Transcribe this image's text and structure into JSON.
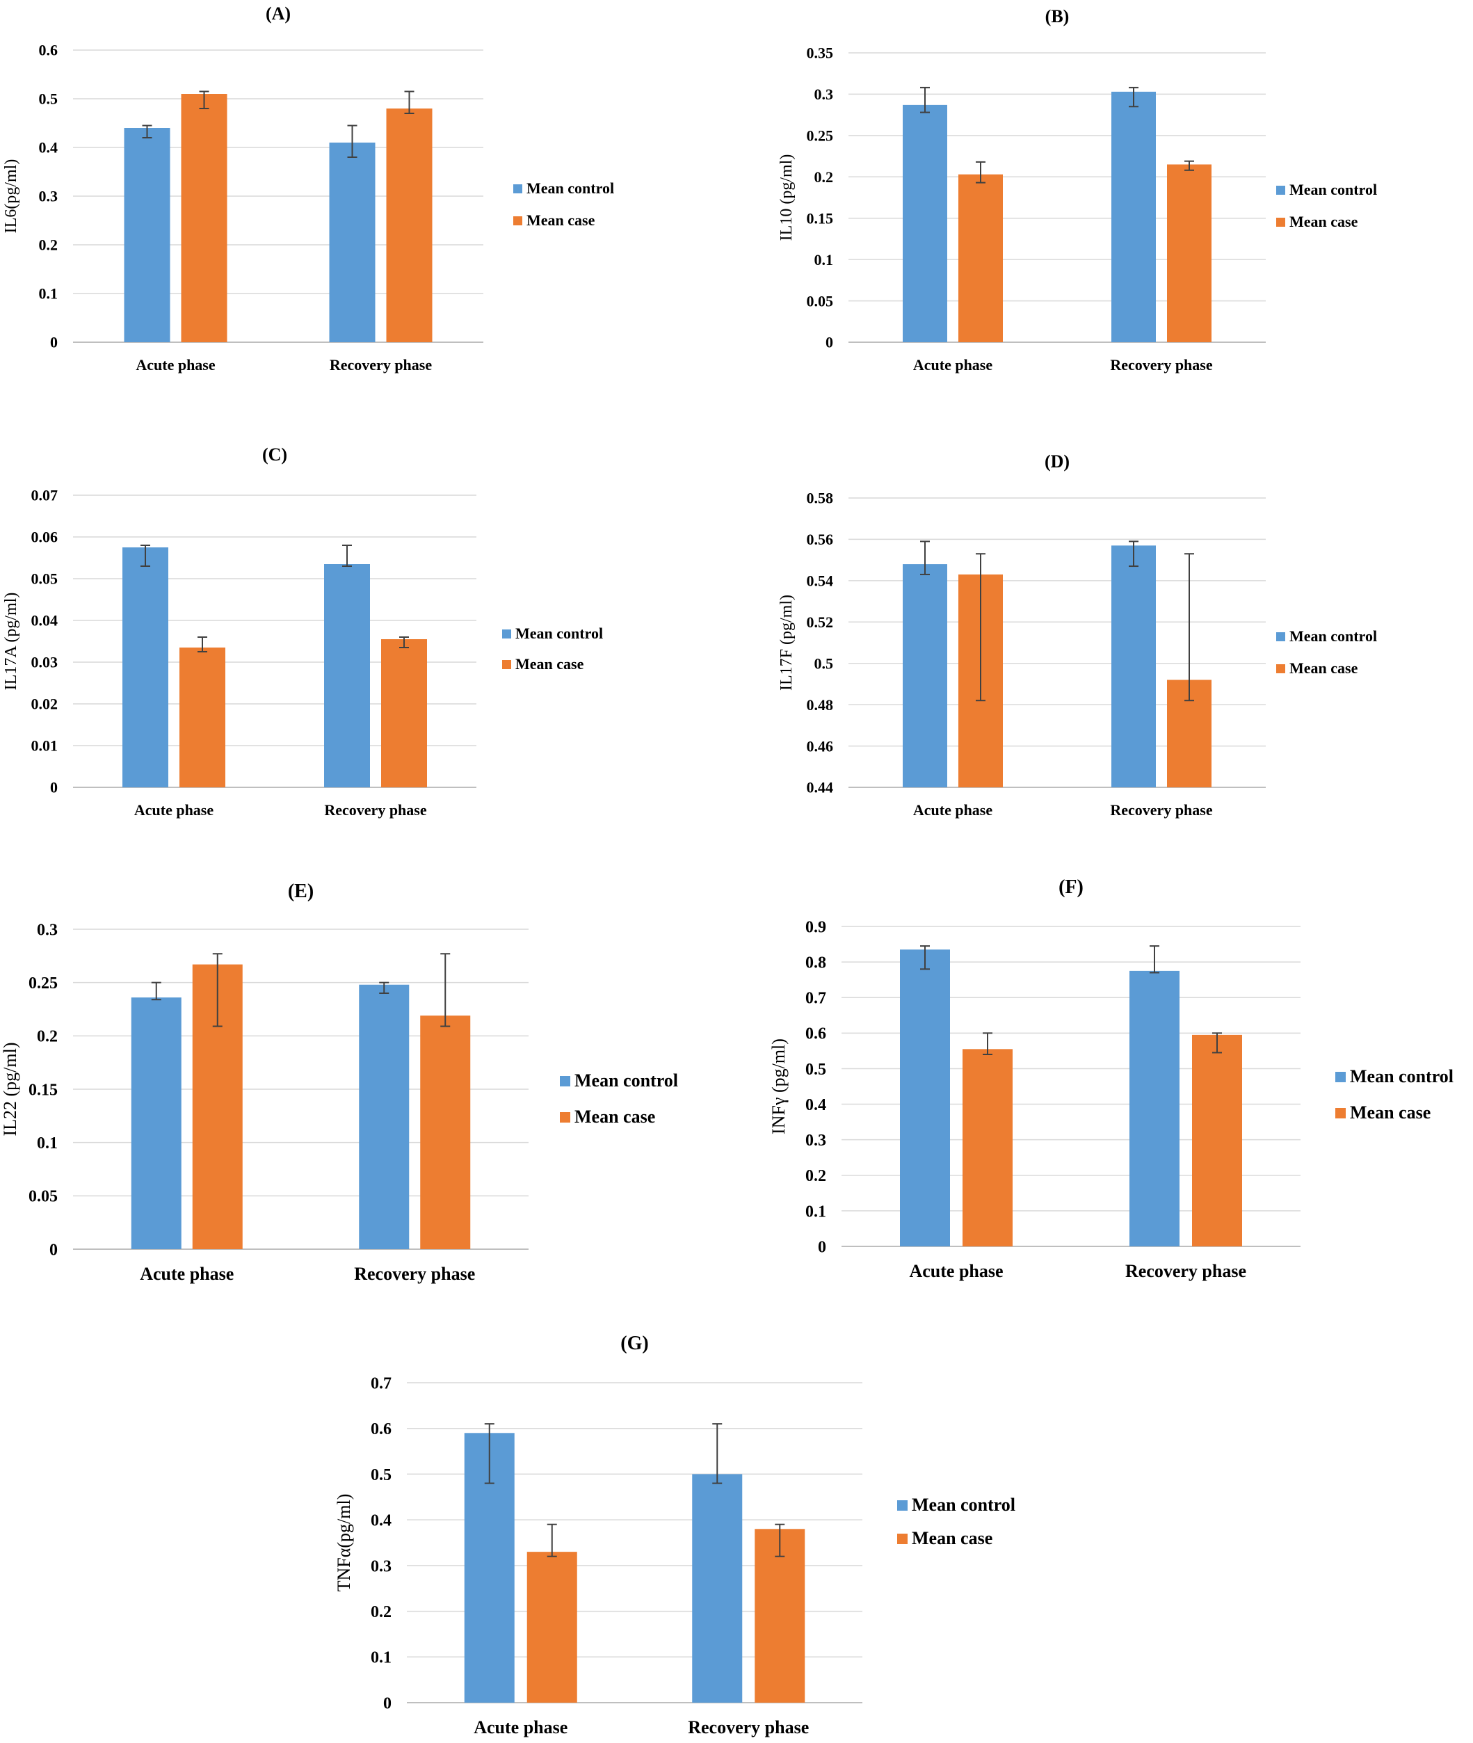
{
  "colors": {
    "control": "#5b9bd5",
    "case": "#ed7d31"
  },
  "chart_data": [
    {
      "type": "bar",
      "panel": "A",
      "title": "(A)",
      "ylabel": "IL6(pg/ml)",
      "categories": [
        "Acute phase",
        "Recovery phase"
      ],
      "ylim": [
        0,
        0.6
      ],
      "ticks": [
        "0",
        "0.1",
        "0.2",
        "0.3",
        "0.4",
        "0.5",
        "0.6"
      ],
      "grid": true,
      "legend": "right",
      "series": [
        {
          "name": "Mean control",
          "values": [
            0.44,
            0.41
          ],
          "err_low": [
            0.42,
            0.38
          ],
          "err_high": [
            0.445,
            0.445
          ]
        },
        {
          "name": "Mean case",
          "values": [
            0.51,
            0.48
          ],
          "err_low": [
            0.48,
            0.47
          ],
          "err_high": [
            0.515,
            0.515
          ]
        }
      ]
    },
    {
      "type": "bar",
      "panel": "B",
      "title": "(B)",
      "ylabel": "IL10 (pg/ml)",
      "categories": [
        "Acute phase",
        "Recovery phase"
      ],
      "ylim": [
        0,
        0.35
      ],
      "ticks": [
        "0",
        "0.05",
        "0.1",
        "0.15",
        "0.2",
        "0.25",
        "0.3",
        "0.35"
      ],
      "grid": true,
      "legend": "right",
      "series": [
        {
          "name": "Mean control",
          "values": [
            0.287,
            0.303
          ],
          "err_low": [
            0.278,
            0.285
          ],
          "err_high": [
            0.308,
            0.308
          ]
        },
        {
          "name": "Mean case",
          "values": [
            0.203,
            0.215
          ],
          "err_low": [
            0.193,
            0.208
          ],
          "err_high": [
            0.218,
            0.219
          ]
        }
      ]
    },
    {
      "type": "bar",
      "panel": "C",
      "title": "(C)",
      "ylabel": "IL17A (pg/ml)",
      "categories": [
        "Acute phase",
        "Recovery phase"
      ],
      "ylim": [
        0,
        0.07
      ],
      "ticks": [
        "0",
        "0.01",
        "0.02",
        "0.03",
        "0.04",
        "0.05",
        "0.06",
        "0.07"
      ],
      "grid": true,
      "legend": "right",
      "series": [
        {
          "name": "Mean control",
          "values": [
            0.0575,
            0.0535
          ],
          "err_low": [
            0.053,
            0.053
          ],
          "err_high": [
            0.058,
            0.058
          ]
        },
        {
          "name": "Mean case",
          "values": [
            0.0335,
            0.0355
          ],
          "err_low": [
            0.0325,
            0.0335
          ],
          "err_high": [
            0.036,
            0.036
          ]
        }
      ]
    },
    {
      "type": "bar",
      "panel": "D",
      "title": "(D)",
      "ylabel": "IL17F (pg/ml)",
      "categories": [
        "Acute phase",
        "Recovery phase"
      ],
      "ylim": [
        0.44,
        0.58
      ],
      "ticks": [
        "0.44",
        "0.46",
        "0.48",
        "0.5",
        "0.52",
        "0.54",
        "0.56",
        "0.58"
      ],
      "grid": true,
      "legend": "right",
      "series": [
        {
          "name": "Mean control",
          "values": [
            0.548,
            0.557
          ],
          "err_low": [
            0.543,
            0.547
          ],
          "err_high": [
            0.559,
            0.559
          ]
        },
        {
          "name": "Mean case",
          "values": [
            0.543,
            0.492
          ],
          "err_low": [
            0.482,
            0.482
          ],
          "err_high": [
            0.553,
            0.553
          ]
        }
      ]
    },
    {
      "type": "bar",
      "panel": "E",
      "title": "(E)",
      "ylabel": "IL22 (pg/ml)",
      "categories": [
        "Acute phase",
        "Recovery phase"
      ],
      "ylim": [
        0,
        0.3
      ],
      "ticks": [
        "0",
        "0.05",
        "0.1",
        "0.15",
        "0.2",
        "0.25",
        "0.3"
      ],
      "grid": true,
      "legend": "right",
      "series": [
        {
          "name": "Mean control",
          "values": [
            0.236,
            0.248
          ],
          "err_low": [
            0.234,
            0.24
          ],
          "err_high": [
            0.25,
            0.25
          ]
        },
        {
          "name": "Mean case",
          "values": [
            0.267,
            0.219
          ],
          "err_low": [
            0.209,
            0.209
          ],
          "err_high": [
            0.277,
            0.277
          ]
        }
      ]
    },
    {
      "type": "bar",
      "panel": "F",
      "title": "(F)",
      "ylabel": "INFγ (pg/ml)",
      "categories": [
        "Acute phase",
        "Recovery phase"
      ],
      "ylim": [
        0,
        0.9
      ],
      "ticks": [
        "0",
        "0.1",
        "0.2",
        "0.3",
        "0.4",
        "0.5",
        "0.6",
        "0.7",
        "0.8",
        "0.9"
      ],
      "grid": true,
      "legend": "right",
      "series": [
        {
          "name": "Mean control",
          "values": [
            0.835,
            0.775
          ],
          "err_low": [
            0.78,
            0.77
          ],
          "err_high": [
            0.845,
            0.845
          ]
        },
        {
          "name": "Mean case",
          "values": [
            0.555,
            0.595
          ],
          "err_low": [
            0.54,
            0.545
          ],
          "err_high": [
            0.6,
            0.6
          ]
        }
      ]
    },
    {
      "type": "bar",
      "panel": "G",
      "title": "(G)",
      "ylabel": "TNFα(pg/ml)",
      "categories": [
        "Acute phase",
        "Recovery phase"
      ],
      "ylim": [
        0,
        0.7
      ],
      "ticks": [
        "0",
        "0.1",
        "0.2",
        "0.3",
        "0.4",
        "0.5",
        "0.6",
        "0.7"
      ],
      "grid": true,
      "legend": "right",
      "series": [
        {
          "name": "Mean control",
          "values": [
            0.59,
            0.5
          ],
          "err_low": [
            0.48,
            0.48
          ],
          "err_high": [
            0.61,
            0.61
          ]
        },
        {
          "name": "Mean case",
          "values": [
            0.33,
            0.38
          ],
          "err_low": [
            0.32,
            0.32
          ],
          "err_high": [
            0.39,
            0.39
          ]
        }
      ]
    }
  ]
}
